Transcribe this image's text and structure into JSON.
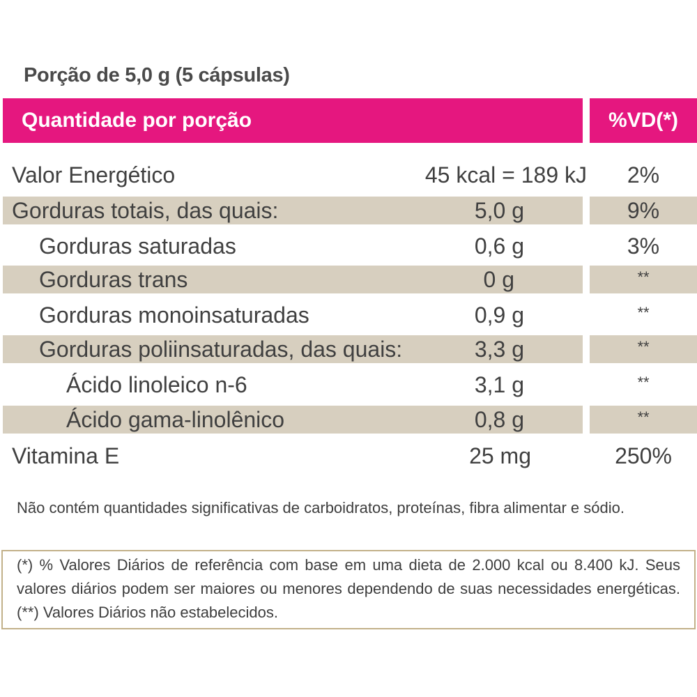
{
  "portion": "Porção de 5,0 g (5 cápsulas)",
  "header": {
    "left": "Quantidade por porção",
    "right": "%VD(*)"
  },
  "rows": [
    {
      "label": "Valor Energético",
      "amount": "45 kcal = 189 kJ",
      "vd": "2%"
    },
    {
      "label": "Gorduras totais, das quais:",
      "amount": "5,0 g",
      "vd": "9%"
    },
    {
      "label": "Gorduras saturadas",
      "amount": "0,6 g",
      "vd": "3%"
    },
    {
      "label": "Gorduras trans",
      "amount": "0 g",
      "vd": "**"
    },
    {
      "label": "Gorduras monoinsaturadas",
      "amount": "0,9 g",
      "vd": "**"
    },
    {
      "label": "Gorduras poliinsaturadas, das quais:",
      "amount": "3,3 g",
      "vd": "**"
    },
    {
      "label": "Ácido linoleico n-6",
      "amount": "3,1 g",
      "vd": "**"
    },
    {
      "label": "Ácido gama-linolênico",
      "amount": "0,8 g",
      "vd": "**"
    },
    {
      "label": "Vitamina E",
      "amount": "25 mg",
      "vd": "250%"
    }
  ],
  "notes": {
    "nutrients": "Não contém quantidades significativas de carboidratos, proteínas, fibra alimentar e sódio.",
    "footnote": "(*) % Valores Diários de referência com base em uma dieta de 2.000 kcal ou 8.400 kJ. Seus valores diários podem ser maiores ou menores dependendo de suas necessidades energéticas. (**) Valores Diários não estabelecidos."
  },
  "colors": {
    "header": "#e5177f",
    "shaded_row": "#d7cfbf",
    "footnote_border": "#c2b089"
  }
}
